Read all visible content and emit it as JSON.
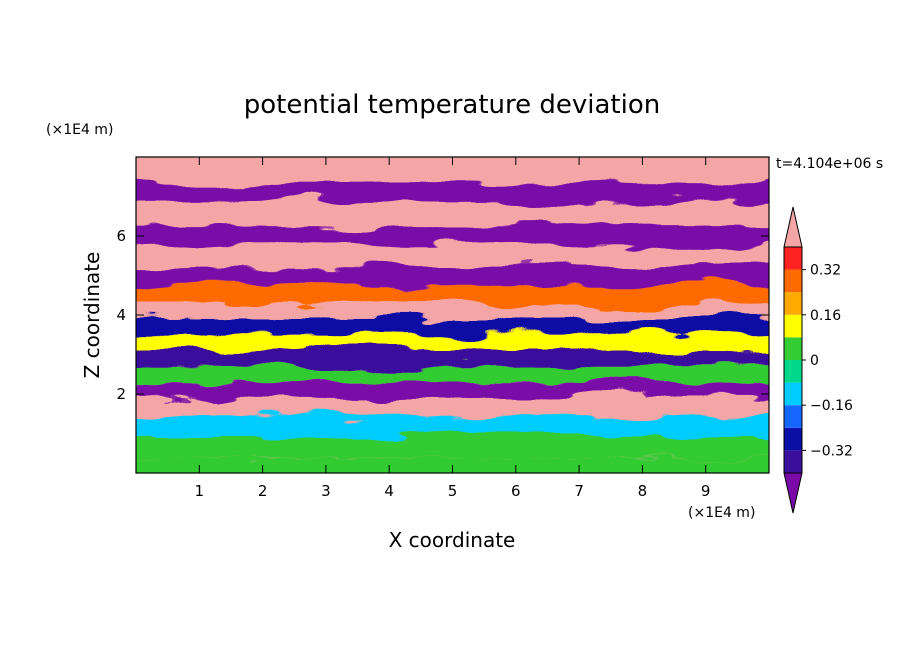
{
  "chart_data": {
    "type": "heatmap",
    "title": "potential temperature deviation",
    "xlabel": "X coordinate",
    "ylabel": "Z coordinate",
    "x_unit": "(×1E4 m)",
    "y_unit": "(×1E4 m)",
    "time_label": "t=4.104e+06 s",
    "xlim": [
      0,
      10
    ],
    "ylim": [
      0,
      8
    ],
    "x_ticks": [
      "1",
      "2",
      "3",
      "4",
      "5",
      "6",
      "7",
      "8",
      "9"
    ],
    "y_ticks": [
      "2",
      "4",
      "6"
    ],
    "colorbar": {
      "labels": [
        "0.32",
        "0.16",
        "0",
        "−0.16",
        "−0.32"
      ],
      "label_values": [
        0.32,
        0.16,
        0,
        -0.16,
        -0.32
      ],
      "levels": [
        -0.4,
        -0.32,
        -0.24,
        -0.16,
        -0.08,
        0,
        0.08,
        0.16,
        0.24,
        0.32,
        0.4
      ],
      "colors": [
        "#7a0aa8",
        "#3a0f9c",
        "#0c0fa6",
        "#1466ff",
        "#00ccff",
        "#00d98a",
        "#33cc33",
        "#ffff00",
        "#ffaa00",
        "#ff6a00",
        "#ff2222",
        "#f4a6a6"
      ],
      "extend": "both"
    },
    "field_rows": [
      {
        "z": 7.6,
        "value": 0.45
      },
      {
        "z": 7.1,
        "value": -0.45
      },
      {
        "z": 6.6,
        "value": 0.45
      },
      {
        "z": 6.0,
        "value": -0.45
      },
      {
        "z": 5.5,
        "value": 0.45
      },
      {
        "z": 5.0,
        "value": -0.45
      },
      {
        "z": 4.5,
        "value": 0.3
      },
      {
        "z": 4.1,
        "value": 0.45
      },
      {
        "z": 3.7,
        "value": -0.3
      },
      {
        "z": 3.3,
        "value": 0.1
      },
      {
        "z": 2.9,
        "value": -0.4
      },
      {
        "z": 2.5,
        "value": 0.05
      },
      {
        "z": 2.1,
        "value": -0.45
      },
      {
        "z": 1.7,
        "value": 0.45
      },
      {
        "z": 1.2,
        "value": -0.1
      },
      {
        "z": 0.6,
        "value": 0.0
      },
      {
        "z": 0.15,
        "value": 0.05
      }
    ]
  }
}
